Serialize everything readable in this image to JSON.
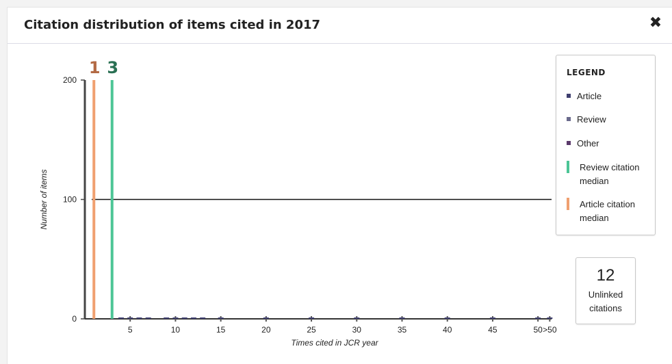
{
  "dialog": {
    "title": "Citation distribution of items cited in 2017",
    "close_icon": "close-icon"
  },
  "legend": {
    "title": "LEGEND",
    "items": [
      {
        "label": "Article",
        "color": "#3f3f6f",
        "marker": "square"
      },
      {
        "label": "Review",
        "color": "#6a6a8c",
        "marker": "square"
      },
      {
        "label": "Other",
        "color": "#5c3a6b",
        "marker": "square"
      },
      {
        "label": "Review citation median",
        "color": "#4cc596",
        "marker": "bar"
      },
      {
        "label": "Article citation median",
        "color": "#f0a070",
        "marker": "bar"
      }
    ]
  },
  "unlinked": {
    "value": "12",
    "label": "Unlinked citations"
  },
  "chart_data": {
    "type": "bar",
    "xlabel": "Times cited in JCR year",
    "ylabel": "Number of items",
    "ylim": [
      0,
      200
    ],
    "yticks": [
      "0",
      "100",
      "200"
    ],
    "xticks": [
      "5",
      "10",
      "15",
      "20",
      "25",
      "30",
      "35",
      "40",
      "45",
      "50",
      ">50"
    ],
    "grid_line_y": 100,
    "medians": [
      {
        "name": "Article citation median",
        "label": "1",
        "x": 1,
        "color": "#f0a070",
        "label_color": "#b36a44"
      },
      {
        "name": "Review citation median",
        "label": "3",
        "x": 3,
        "color": "#4cc596",
        "label_color": "#2a7053"
      }
    ],
    "series": [
      {
        "name": "Article",
        "color": "#3f3f6f",
        "points": [
          [
            4,
            1
          ],
          [
            5,
            1
          ],
          [
            6,
            1
          ],
          [
            7,
            1
          ],
          [
            9,
            1
          ],
          [
            10,
            1
          ],
          [
            11,
            1
          ],
          [
            12,
            1
          ],
          [
            13,
            1
          ],
          [
            15,
            1
          ],
          [
            20,
            1
          ],
          [
            25,
            1
          ],
          [
            30,
            1
          ],
          [
            35,
            1
          ],
          [
            40,
            1
          ],
          [
            45,
            1
          ],
          [
            50,
            1
          ],
          [
            51,
            1
          ]
        ]
      }
    ]
  }
}
